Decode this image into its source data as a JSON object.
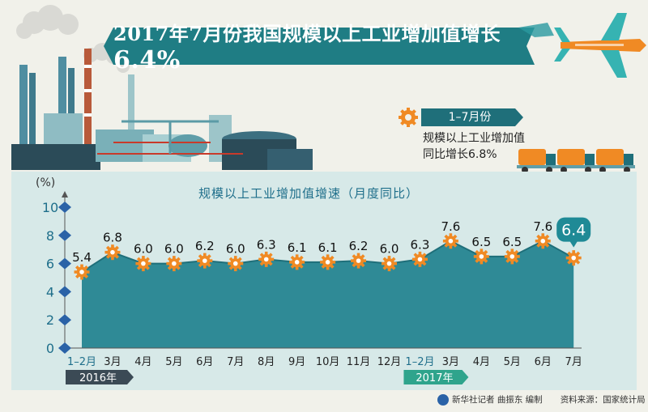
{
  "header": {
    "title_prefix": "2017年7月份我国规模以上工业增加值增长",
    "title_value": "6.4%"
  },
  "summary": {
    "period": "1–7月份",
    "line1": "规模以上工业增加值",
    "line2": "同比增长6.8%"
  },
  "chart_data": {
    "type": "area",
    "title": "规模以上工业增加值增速（月度同比）",
    "ylabel": "(%)",
    "ylim": [
      0,
      10
    ],
    "yticks": [
      "0",
      "2",
      "4",
      "6",
      "8",
      "10"
    ],
    "categories": [
      "1–2月",
      "3月",
      "4月",
      "5月",
      "6月",
      "7月",
      "8月",
      "9月",
      "10月",
      "11月",
      "12月",
      "1–2月",
      "3月",
      "4月",
      "5月",
      "6月",
      "7月"
    ],
    "values": [
      5.4,
      6.8,
      6.0,
      6.0,
      6.2,
      6.0,
      6.3,
      6.1,
      6.1,
      6.2,
      6.0,
      6.3,
      7.6,
      6.5,
      6.5,
      7.6,
      6.4
    ],
    "value_labels": [
      "5.4",
      "6.8",
      "6.0",
      "6.0",
      "6.2",
      "6.0",
      "6.3",
      "6.1",
      "6.1",
      "6.2",
      "6.0",
      "6.3",
      "7.6",
      "6.5",
      "6.5",
      "7.6",
      "6.4"
    ],
    "highlight_index": 16,
    "year_groups": [
      {
        "label": "2016年",
        "start": 0,
        "end": 10
      },
      {
        "label": "2017年",
        "start": 11,
        "end": 16
      }
    ],
    "grid": false
  },
  "footer": {
    "credit": "新华社记者 曲振东 编制",
    "source": "资料来源：国家统计局"
  },
  "colors": {
    "area": "#2f8a96",
    "area_dark": "#1f6f7a",
    "panel": "#d7e9e8",
    "gear": "#f08a24",
    "accent_green": "#2fa48c",
    "banner": "#1f7d84",
    "axis_text": "#1f6f8b"
  }
}
